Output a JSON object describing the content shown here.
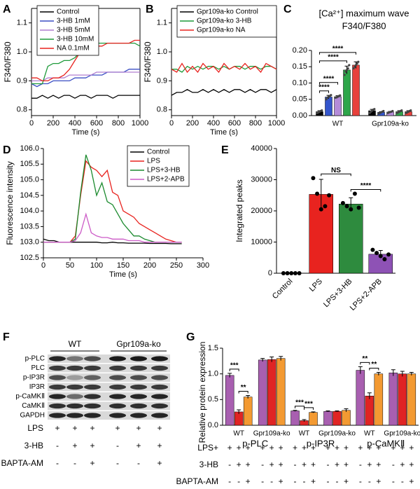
{
  "chart_data": [
    {
      "type": "line",
      "panel": "A",
      "ylabel": "F340/F380",
      "xlabel": "Time (s)",
      "frame": true,
      "legend": "upper left",
      "xlim": [
        0,
        1000
      ],
      "xticks": [
        0,
        200,
        400,
        600,
        800,
        1000
      ],
      "ylim": [
        0.78,
        1.15
      ],
      "yticks": [
        0.8,
        0.9,
        {
          "value": 1,
          "label": "1.0"
        },
        1.1
      ],
      "x": [
        0,
        50,
        100,
        150,
        200,
        250,
        300,
        350,
        400,
        450,
        500,
        550,
        600,
        650,
        700,
        750,
        800,
        850,
        900,
        950,
        1000
      ],
      "series": [
        {
          "name": "Control",
          "color": "#000000",
          "values": [
            0.84,
            0.84,
            0.85,
            0.84,
            0.85,
            0.84,
            0.85,
            0.85,
            0.84,
            0.85,
            0.85,
            0.84,
            0.85,
            0.85,
            0.85,
            0.84,
            0.85,
            0.85,
            0.85,
            0.85,
            0.85
          ]
        },
        {
          "name": "3-HB 1mM",
          "color": "#3b4fc4",
          "values": [
            0.89,
            0.88,
            0.89,
            0.89,
            0.9,
            0.9,
            0.9,
            0.9,
            0.91,
            0.91,
            0.91,
            0.92,
            0.92,
            0.92,
            0.93,
            0.93,
            0.93,
            0.93,
            0.94,
            0.94,
            0.94
          ]
        },
        {
          "name": "3-HB 5mM",
          "color": "#b07fd0",
          "values": [
            0.9,
            0.9,
            0.9,
            0.91,
            0.91,
            0.91,
            0.91,
            0.92,
            0.92,
            0.92,
            0.92,
            0.92,
            0.93,
            0.93,
            0.93,
            0.93,
            0.93,
            0.93,
            0.93,
            0.93,
            0.93
          ]
        },
        {
          "name": "3-HB 10mM",
          "color": "#1e9a3a",
          "values": [
            0.89,
            0.89,
            0.89,
            0.95,
            0.96,
            0.96,
            0.97,
            0.97,
            0.98,
            1.0,
            1.02,
            1.03,
            1.03,
            1.03,
            1.03,
            1.03,
            1.03,
            1.03,
            1.03,
            1.03,
            1.02
          ]
        },
        {
          "name": "NA 0.1mM",
          "color": "#e8231f",
          "values": [
            0.91,
            0.91,
            0.9,
            0.9,
            0.91,
            0.91,
            0.92,
            0.94,
            0.97,
            1.0,
            1.01,
            1.02,
            1.02,
            1.02,
            1.03,
            1.03,
            1.03,
            1.03,
            1.03,
            1.04,
            1.04
          ]
        }
      ]
    },
    {
      "type": "line",
      "panel": "B",
      "ylabel": "F340/F380",
      "xlabel": "Time (s)",
      "frame": true,
      "legend": "upper left",
      "xlim": [
        0,
        1000
      ],
      "xticks": [
        0,
        200,
        400,
        600,
        800,
        1000
      ],
      "ylim": [
        0.78,
        1.15
      ],
      "yticks": [
        0.8,
        0.9,
        {
          "value": 1,
          "label": "1.0"
        },
        1.1
      ],
      "x": [
        0,
        50,
        100,
        150,
        200,
        250,
        300,
        350,
        400,
        450,
        500,
        550,
        600,
        650,
        700,
        750,
        800,
        850,
        900,
        950,
        1000
      ],
      "series": [
        {
          "name": "Gpr109a-ko Control",
          "color": "#000000",
          "values": [
            0.85,
            0.86,
            0.86,
            0.87,
            0.86,
            0.86,
            0.87,
            0.86,
            0.87,
            0.86,
            0.87,
            0.86,
            0.87,
            0.87,
            0.86,
            0.87,
            0.86,
            0.87,
            0.87,
            0.86,
            0.87
          ]
        },
        {
          "name": "Gpr109a-ko 3-HB",
          "color": "#1e9a3a",
          "values": [
            0.94,
            0.94,
            0.93,
            0.95,
            0.94,
            0.95,
            0.94,
            0.95,
            0.95,
            0.94,
            0.95,
            0.94,
            0.95,
            0.95,
            0.94,
            0.95,
            0.95,
            0.94,
            0.95,
            0.95,
            0.94
          ]
        },
        {
          "name": "Gpr109a-ko NA",
          "color": "#e8231f",
          "values": [
            0.94,
            0.93,
            0.96,
            0.93,
            0.95,
            0.93,
            0.96,
            0.94,
            0.95,
            0.93,
            0.96,
            0.94,
            0.95,
            0.94,
            0.96,
            0.94,
            0.95,
            0.93,
            0.96,
            0.95,
            0.94
          ]
        }
      ]
    },
    {
      "type": "bar",
      "panel": "C",
      "title": "[Ca²⁺] maximum wave",
      "subtitle": "F340/F380",
      "categories": [
        "WT",
        "Gpr109a-ko"
      ],
      "ylim": [
        0,
        0.2
      ],
      "yticks": [
        {
          "value": 0,
          "label": "0.00"
        },
        0.05,
        {
          "value": 0.1,
          "label": "0.10"
        },
        0.15,
        {
          "value": 0.2,
          "label": "0.20"
        }
      ],
      "series": [
        {
          "color": "#000000",
          "values": [
            0.012,
            0.015
          ],
          "errors": [
            0.003,
            0.004
          ],
          "points": [
            [
              0.008,
              0.01,
              0.012,
              0.014,
              0.016
            ],
            [
              0.008,
              0.012,
              0.015,
              0.018,
              0.02
            ]
          ]
        },
        {
          "color": "#3355cc",
          "values": [
            0.057,
            0.01
          ],
          "errors": [
            0.005,
            0.002
          ],
          "points": [
            [
              0.05,
              0.055,
              0.058,
              0.06,
              0.063
            ],
            [
              0.006,
              0.008,
              0.01,
              0.012,
              0.014
            ]
          ]
        },
        {
          "color": "#b48bd8",
          "values": [
            0.058,
            0.011
          ],
          "errors": [
            0.003,
            0.002
          ],
          "points": [
            [
              0.055,
              0.056,
              0.058,
              0.06,
              0.062
            ],
            [
              0.008,
              0.01,
              0.011,
              0.012,
              0.014
            ]
          ]
        },
        {
          "color": "#2ea64a",
          "values": [
            0.14,
            0.012
          ],
          "errors": [
            0.012,
            0.003
          ],
          "points": [
            [
              0.125,
              0.135,
              0.14,
              0.145,
              0.155
            ],
            [
              0.008,
              0.01,
              0.012,
              0.014,
              0.016
            ]
          ]
        },
        {
          "color": "#e8413c",
          "values": [
            0.155,
            0.012
          ],
          "errors": [
            0.01,
            0.003
          ],
          "points": [
            [
              0.145,
              0.15,
              0.155,
              0.16,
              0.165
            ],
            [
              0.008,
              0.01,
              0.012,
              0.014,
              0.016
            ]
          ]
        }
      ],
      "annotations": [
        "****",
        "****",
        "****",
        "****"
      ]
    },
    {
      "type": "line",
      "panel": "D",
      "ylabel": "Fluorescence intensity",
      "xlabel": "Time (s)",
      "legend": "upper right",
      "xlim": [
        0,
        300
      ],
      "xticks": [
        0,
        50,
        100,
        150,
        200,
        250,
        300
      ],
      "ylim": [
        102.5,
        106
      ],
      "yticks": [
        102.5,
        {
          "value": 103,
          "label": "103.0"
        },
        103.5,
        {
          "value": 104,
          "label": "104.0"
        },
        104.5,
        {
          "value": 105,
          "label": "105.0"
        },
        105.5,
        {
          "value": 106,
          "label": "106.0"
        }
      ],
      "x": [
        0,
        10,
        20,
        30,
        40,
        50,
        60,
        70,
        80,
        90,
        100,
        110,
        120,
        130,
        140,
        150,
        160,
        170,
        180,
        190,
        200,
        210,
        220,
        230,
        240,
        250,
        260
      ],
      "series": [
        {
          "name": "Control",
          "color": "#000000",
          "values": [
            103.1,
            103.05,
            103.05,
            103.0,
            103.0,
            103.0,
            103.0,
            103.0,
            103.0,
            103.0,
            103.0,
            102.98,
            102.98,
            103.0,
            102.98,
            102.98,
            102.97,
            102.97,
            102.97,
            102.97,
            102.96,
            102.96,
            102.96,
            102.96,
            102.95,
            102.95,
            102.95
          ]
        },
        {
          "name": "LPS",
          "color": "#e8231f",
          "values": [
            103.0,
            103.0,
            103.0,
            103.0,
            103.0,
            103.0,
            103.2,
            104.5,
            105.6,
            105.4,
            105.3,
            105.1,
            105.3,
            104.6,
            104.5,
            104.0,
            103.9,
            103.8,
            103.6,
            103.5,
            103.4,
            103.3,
            103.2,
            103.1,
            103.05,
            103.0,
            103.0
          ]
        },
        {
          "name": "LPS+3-HB",
          "color": "#1b8a2e",
          "values": [
            103.0,
            103.0,
            103.0,
            103.0,
            103.0,
            103.0,
            103.1,
            104.6,
            105.8,
            105.3,
            104.5,
            104.9,
            104.3,
            104.2,
            103.9,
            103.6,
            103.4,
            103.2,
            103.2,
            103.1,
            103.05,
            103.0,
            103.0,
            103.0,
            103.0,
            103.0,
            103.0
          ]
        },
        {
          "name": "LPS+2-APB",
          "color": "#cc5bc7",
          "values": [
            103.0,
            103.0,
            103.0,
            103.0,
            103.0,
            103.0,
            103.05,
            103.3,
            103.9,
            103.3,
            103.2,
            103.15,
            103.15,
            103.1,
            103.1,
            103.1,
            103.05,
            103.05,
            103.05,
            103.0,
            103.0,
            103.0,
            103.0,
            103.0,
            103.0,
            103.0,
            103.0
          ]
        }
      ]
    },
    {
      "type": "bar",
      "panel": "E",
      "ylabel": "Integrated peaks",
      "categories": [
        "Control",
        "LPS",
        "LPS+3-HB",
        "LPS+2-APB"
      ],
      "values": [
        0,
        25300,
        22200,
        6100
      ],
      "errors": [
        0,
        4800,
        2000,
        1200
      ],
      "colors": [
        "#000000",
        "#e8231f",
        "#2e8b3e",
        "#8e52b5"
      ],
      "points": [
        [
          0,
          0,
          0,
          0,
          0
        ],
        [
          30500,
          25500,
          20500,
          21500,
          25000
        ],
        [
          22500,
          21500,
          20500,
          25500,
          21000
        ],
        [
          7500,
          6500,
          5500,
          4500,
          6000
        ]
      ],
      "ylim": [
        0,
        40000
      ],
      "yticks": [
        0,
        10000,
        20000,
        30000,
        40000
      ],
      "annotations": [
        "NS",
        "****"
      ]
    },
    {
      "type": "bar",
      "panel": "G",
      "ylabel": "Relative protein expression",
      "categories": [
        "p-PLC",
        "p-IP3R",
        "p-CaMKⅡ"
      ],
      "subgroups": [
        "WT",
        "Gpr109a-ko"
      ],
      "ylim": [
        0,
        1.5
      ],
      "yticks": [
        {
          "value": 0,
          "label": "0.0"
        },
        0.5,
        {
          "value": 1,
          "label": "1.0"
        },
        1.5
      ],
      "series": [
        {
          "color": "#a85fb0",
          "values": [
            0.97,
            0.28,
            1.07
          ],
          "errors": [
            0.04,
            0.01,
            0.07
          ]
        },
        {
          "color": "#e02424",
          "values": [
            0.26,
            0.09,
            0.57
          ],
          "errors": [
            0.04,
            0.02,
            0.06
          ]
        },
        {
          "color": "#f39a32",
          "values": [
            0.55,
            0.25,
            1.0
          ],
          "errors": [
            0.03,
            0.01,
            0.03
          ]
        },
        {
          "color": "#a85fb0",
          "values": [
            1.27,
            0.27,
            1.02
          ],
          "errors": [
            0.03,
            0.01,
            0.06
          ]
        },
        {
          "color": "#e02424",
          "values": [
            1.28,
            0.27,
            1.0
          ],
          "errors": [
            0.05,
            0.01,
            0.05
          ]
        },
        {
          "color": "#f39a32",
          "values": [
            1.3,
            0.29,
            1.0
          ],
          "errors": [
            0.04,
            0.03,
            0.03
          ]
        }
      ],
      "annotations": [
        "***",
        "**",
        "***",
        "***",
        "**",
        "**"
      ],
      "conditions": [
        {
          "label": "LPS+",
          "marks": [
            "+",
            "+",
            "+",
            "+",
            "+",
            "+",
            "+",
            "+",
            "+",
            "+",
            "+",
            "+",
            "+",
            "+",
            "+",
            "+",
            "+",
            "+"
          ]
        },
        {
          "label": "3-HB",
          "marks": [
            "-",
            "+",
            "+",
            "-",
            "+",
            "+",
            "-",
            "+",
            "+",
            "-",
            "+",
            "+",
            "-",
            "+",
            "+",
            "-",
            "+",
            "+"
          ]
        },
        {
          "label": "BAPTA-AM",
          "marks": [
            "-",
            "-",
            "+",
            "-",
            "-",
            "+",
            "-",
            "-",
            "+",
            "-",
            "-",
            "+",
            "-",
            "-",
            "+",
            "-",
            "-",
            "+"
          ]
        }
      ]
    }
  ],
  "blot": {
    "panel": "F",
    "groups": [
      "WT",
      "Gpr109a-ko"
    ],
    "rows": [
      "p-PLC",
      "PLC",
      "p-IP3R",
      "IP3R",
      "p-CaMKⅡ",
      "CaMKⅡ",
      "GAPDH"
    ],
    "conditions": [
      {
        "label": "LPS",
        "marks": [
          "+",
          "+",
          "+",
          "+",
          "+",
          "+"
        ]
      },
      {
        "label": "3-HB",
        "marks": [
          "-",
          "+",
          "+",
          "-",
          "+",
          "+"
        ]
      },
      {
        "label": "BAPTA-AM",
        "marks": [
          "-",
          "-",
          "+",
          "-",
          "-",
          "+"
        ]
      }
    ]
  }
}
